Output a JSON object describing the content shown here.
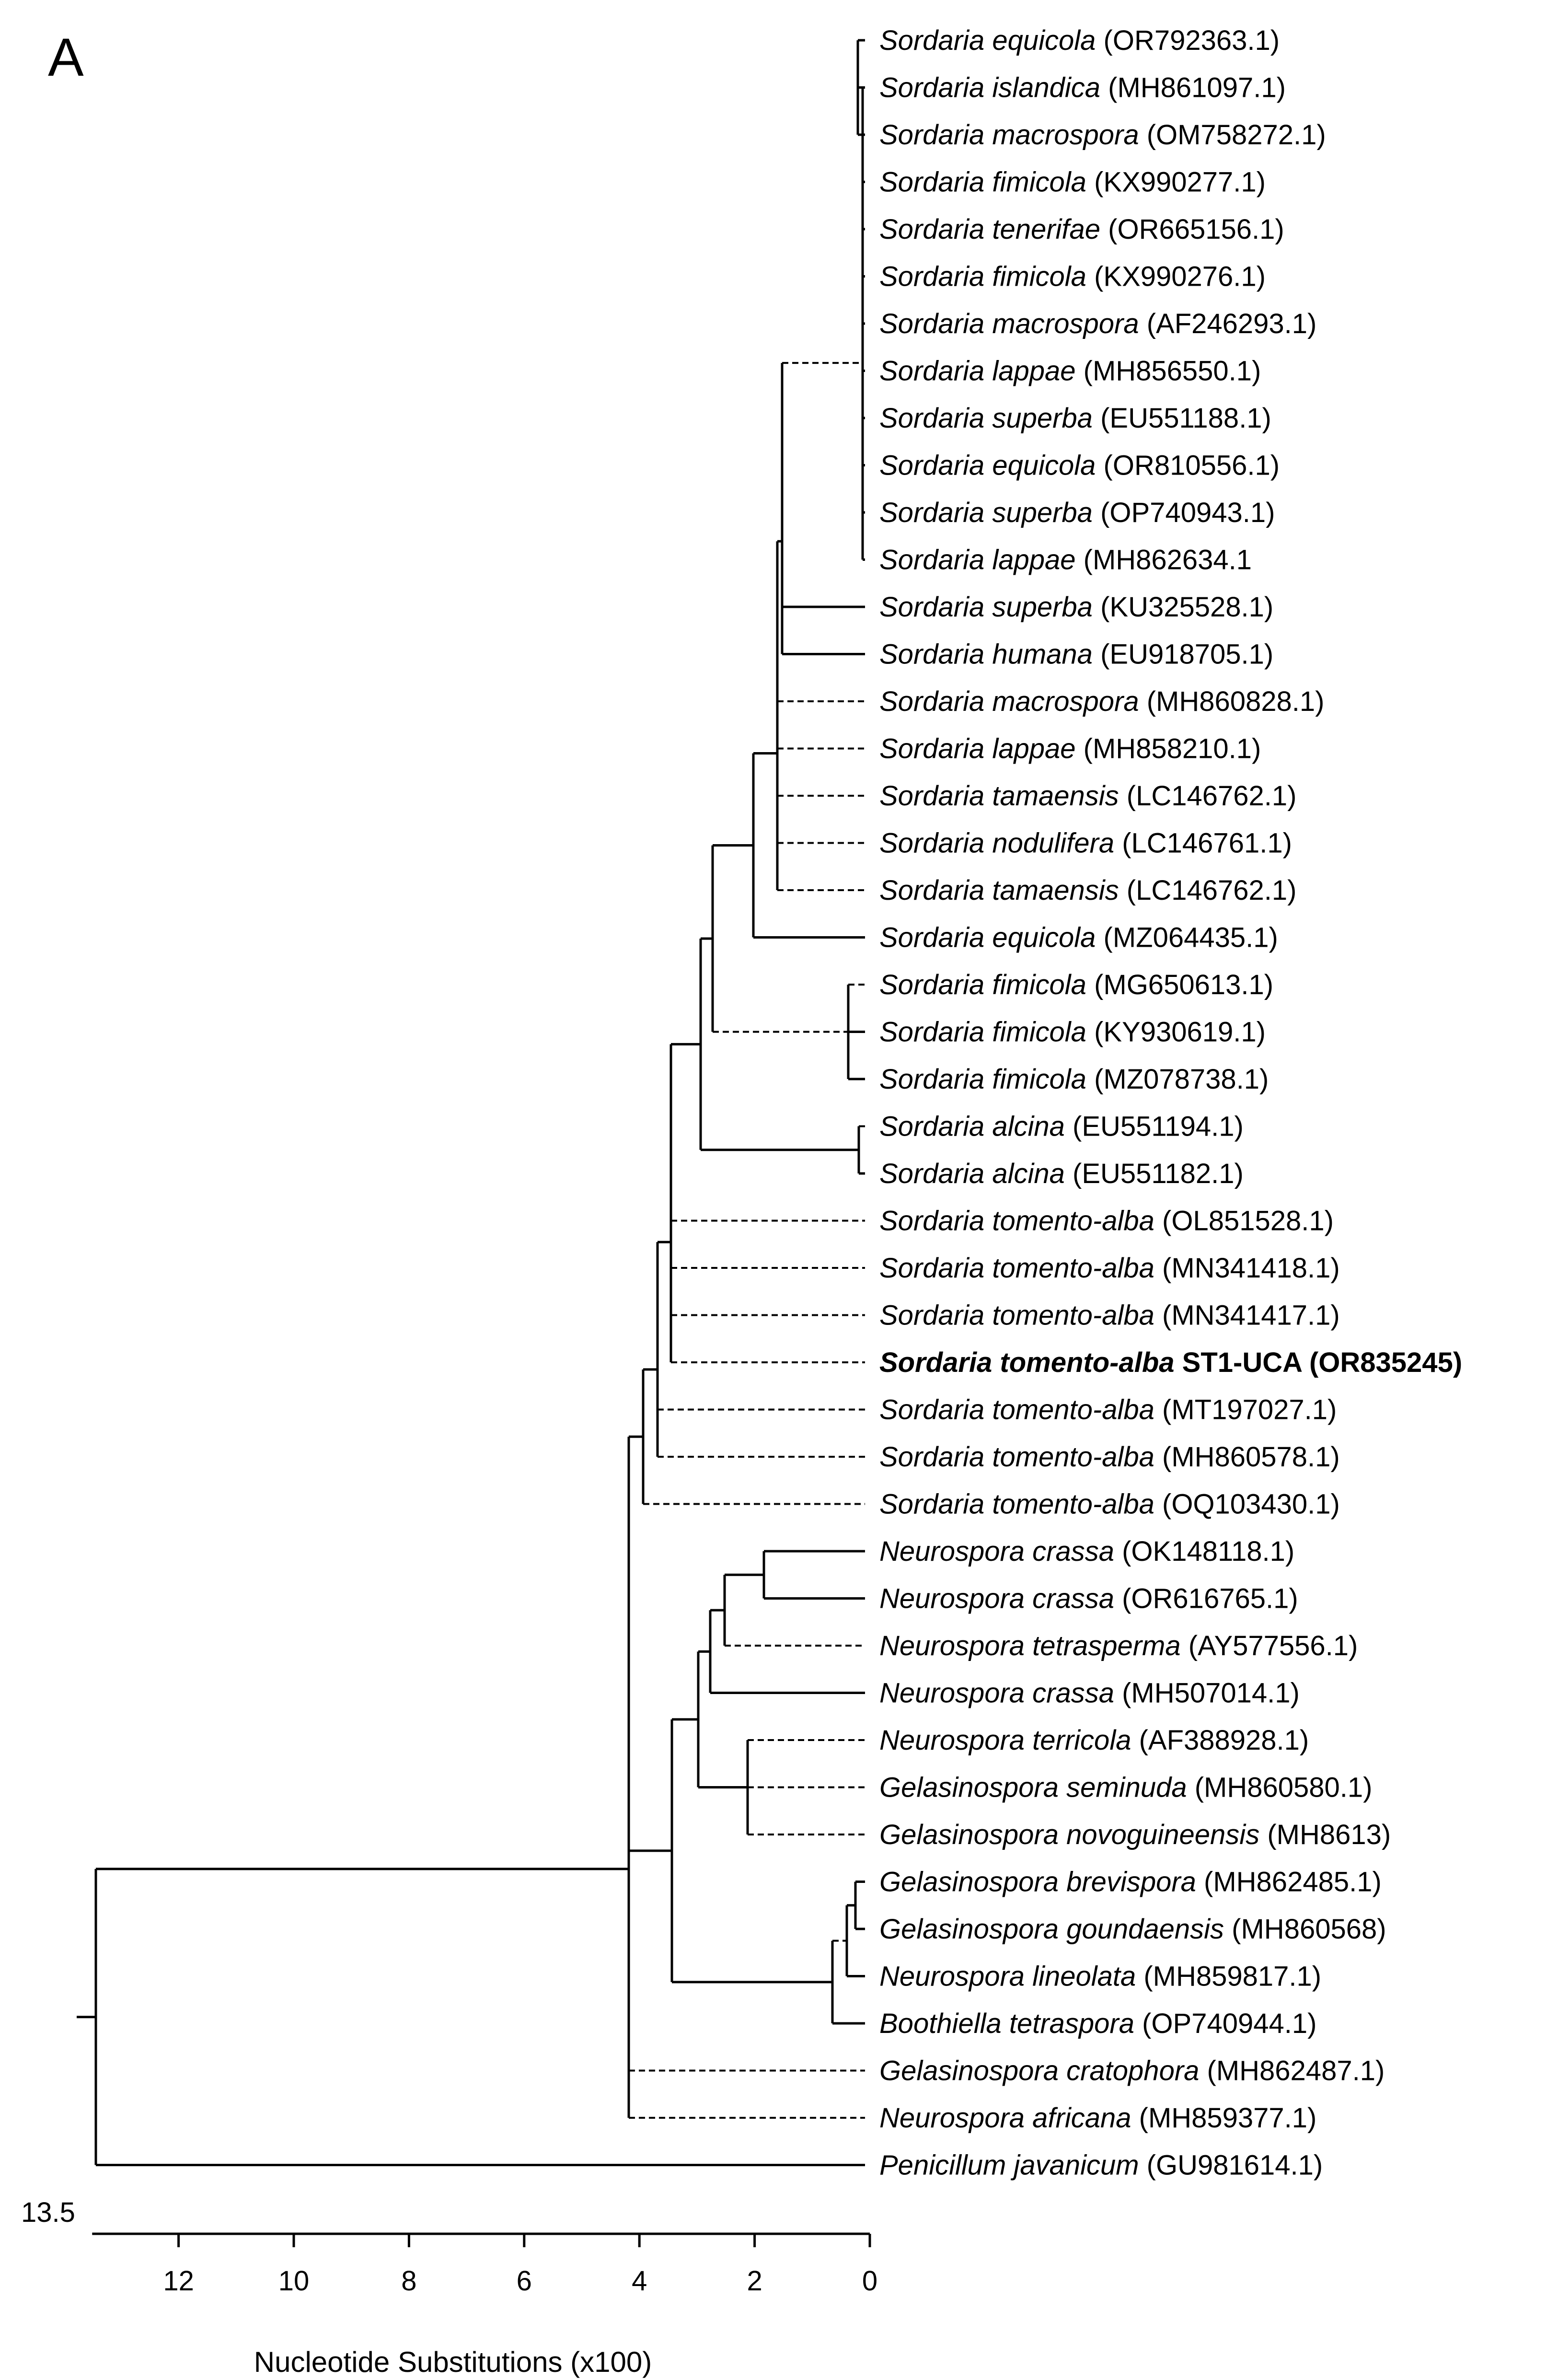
{
  "panel_label": "A",
  "root_label": "13.5",
  "axis": {
    "title": "Nucleotide Substitutions (x100)",
    "ticks": [
      12,
      10,
      8,
      6,
      4,
      2,
      0
    ],
    "range": [
      0,
      13.5
    ],
    "direction": "decreasing-left-to-right"
  },
  "tips": [
    {
      "genus_species": "Sordaria equicola",
      "accession": "(OR792363.1)"
    },
    {
      "genus_species": "Sordaria islandica",
      "accession": "(MH861097.1)"
    },
    {
      "genus_species": "Sordaria macrospora",
      "accession": "(OM758272.1)"
    },
    {
      "genus_species": "Sordaria fimicola",
      "accession": "(KX990277.1)"
    },
    {
      "genus_species": "Sordaria tenerifae",
      "accession": "(OR665156.1)"
    },
    {
      "genus_species": "Sordaria fimicola",
      "accession": "(KX990276.1)"
    },
    {
      "genus_species": "Sordaria macrospora",
      "accession": "(AF246293.1)"
    },
    {
      "genus_species": "Sordaria lappae",
      "accession": "(MH856550.1)"
    },
    {
      "genus_species": "Sordaria superba",
      "accession": "(EU551188.1)"
    },
    {
      "genus_species": "Sordaria equicola",
      "accession": "(OR810556.1)"
    },
    {
      "genus_species": "Sordaria superba",
      "accession": "(OP740943.1)"
    },
    {
      "genus_species": "Sordaria lappae",
      "accession": "(MH862634.1"
    },
    {
      "genus_species": "Sordaria superba",
      "accession": "(KU325528.1)"
    },
    {
      "genus_species": "Sordaria humana",
      "accession": "(EU918705.1)"
    },
    {
      "genus_species": "Sordaria macrospora",
      "accession": "(MH860828.1)"
    },
    {
      "genus_species": "Sordaria lappae",
      "accession": "(MH858210.1)"
    },
    {
      "genus_species": "Sordaria tamaensis",
      "accession": "(LC146762.1)"
    },
    {
      "genus_species": "Sordaria nodulifera",
      "accession": "(LC146761.1)"
    },
    {
      "genus_species": "Sordaria tamaensis",
      "accession": "(LC146762.1)"
    },
    {
      "genus_species": "Sordaria equicola",
      "accession": "(MZ064435.1)"
    },
    {
      "genus_species": "Sordaria fimicola",
      "accession": "(MG650613.1)"
    },
    {
      "genus_species": "Sordaria fimicola",
      "accession": "(KY930619.1)"
    },
    {
      "genus_species": "Sordaria fimicola",
      "accession": "(MZ078738.1)"
    },
    {
      "genus_species": "Sordaria alcina",
      "accession": "(EU551194.1)"
    },
    {
      "genus_species": "Sordaria alcina",
      "accession": "(EU551182.1)"
    },
    {
      "genus_species": "Sordaria tomento-alba",
      "accession": "(OL851528.1)"
    },
    {
      "genus_species": "Sordaria tomento-alba",
      "accession": "(MN341418.1)"
    },
    {
      "genus_species": "Sordaria tomento-alba",
      "accession": "(MN341417.1)"
    },
    {
      "genus_species": "Sordaria tomento-alba",
      "accession": "ST1-UCA (OR835245)",
      "highlight": true
    },
    {
      "genus_species": "Sordaria tomento-alba",
      "accession": "(MT197027.1)"
    },
    {
      "genus_species": "Sordaria tomento-alba",
      "accession": "(MH860578.1)"
    },
    {
      "genus_species": "Sordaria tomento-alba",
      "accession": "(OQ103430.1)"
    },
    {
      "genus_species": "Neurospora crassa",
      "accession": "(OK148118.1)"
    },
    {
      "genus_species": "Neurospora crassa",
      "accession": "(OR616765.1)"
    },
    {
      "genus_species": "Neurospora tetrasperma",
      "accession": "(AY577556.1)"
    },
    {
      "genus_species": "Neurospora crassa",
      "accession": "(MH507014.1)"
    },
    {
      "genus_species": "Neurospora terricola",
      "accession": "(AF388928.1)"
    },
    {
      "genus_species": "Gelasinospora seminuda",
      "accession": "(MH860580.1)"
    },
    {
      "genus_species": "Gelasinospora novoguineensis",
      "accession": "(MH8613)"
    },
    {
      "genus_species": "Gelasinospora brevispora",
      "accession": "(MH862485.1)"
    },
    {
      "genus_species": "Gelasinospora goundaensis",
      "accession": "(MH860568)"
    },
    {
      "genus_species": "Neurospora lineolata",
      "accession": "(MH859817.1)"
    },
    {
      "genus_species": "Boothiella tetraspora",
      "accession": "(OP740944.1)"
    },
    {
      "genus_species": "Gelasinospora cratophora",
      "accession": "(MH862487.1)"
    },
    {
      "genus_species": "Neurospora africana",
      "accession": "(MH859377.1)"
    },
    {
      "genus_species": "Penicillum javanicum",
      "accession": "(GU981614.1)"
    }
  ]
}
